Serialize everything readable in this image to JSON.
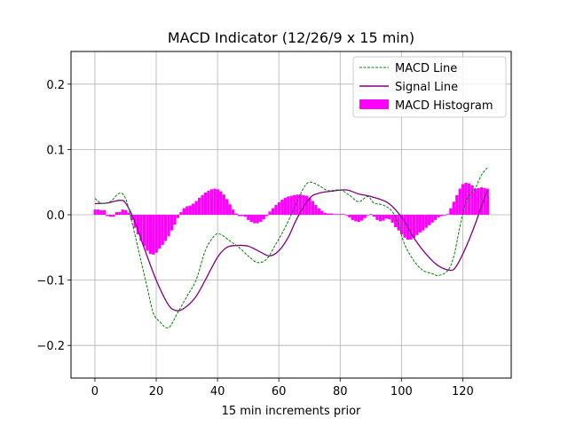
{
  "chart_data": {
    "type": "line",
    "title": "MACD Indicator (12/26/9 x 15 min)",
    "xlabel": "15 min increments prior",
    "ylabel": "",
    "xlim": [
      -7.8,
      135.8
    ],
    "ylim": [
      -0.25,
      0.25
    ],
    "grid": true,
    "legend_position": "top-right",
    "xticks": [
      0,
      20,
      40,
      60,
      80,
      100,
      120
    ],
    "xtick_labels": [
      "0",
      "20",
      "40",
      "60",
      "80",
      "100",
      "120"
    ],
    "yticks": [
      -0.2,
      -0.1,
      0.0,
      0.1,
      0.2
    ],
    "ytick_labels": [
      "−0.2",
      "−0.1",
      "0.0",
      "0.1",
      "0.2"
    ],
    "colors": {
      "macd": "#008000",
      "signal": "#800080",
      "histogram": "#ff00ff",
      "grid": "#b0b0b0"
    },
    "series": [
      {
        "name": "MACD Line",
        "style": "dashed",
        "x": [
          0,
          2,
          5,
          8,
          10,
          12,
          15,
          17,
          19,
          21,
          24,
          27,
          30,
          33,
          36,
          39,
          41,
          44,
          47,
          50,
          53,
          56,
          59,
          62,
          65,
          68,
          70,
          73,
          76,
          80,
          83,
          86,
          89,
          91,
          94,
          97,
          99,
          101,
          104,
          107,
          110,
          112,
          115,
          117,
          119,
          121,
          124,
          126,
          128
        ],
        "y": [
          0.025,
          0.018,
          0.02,
          0.033,
          0.025,
          -0.01,
          -0.07,
          -0.11,
          -0.15,
          -0.163,
          -0.173,
          -0.15,
          -0.125,
          -0.1,
          -0.055,
          -0.032,
          -0.03,
          -0.04,
          -0.05,
          -0.063,
          -0.073,
          -0.068,
          -0.045,
          -0.02,
          0.01,
          0.04,
          0.05,
          0.045,
          0.037,
          0.038,
          0.03,
          0.02,
          0.028,
          0.018,
          0.015,
          0.005,
          -0.015,
          -0.045,
          -0.07,
          -0.085,
          -0.09,
          -0.093,
          -0.086,
          -0.065,
          -0.02,
          0.02,
          0.04,
          0.06,
          0.072
        ]
      },
      {
        "name": "Signal Line",
        "style": "solid",
        "x": [
          0,
          4,
          8,
          10,
          13,
          16,
          20,
          24,
          27,
          30,
          33,
          36,
          40,
          43,
          46,
          50,
          54,
          57,
          60,
          63,
          66,
          70,
          73,
          77,
          82,
          86,
          90,
          95,
          98,
          101,
          104,
          108,
          112,
          116,
          118,
          121,
          124,
          126,
          128
        ],
        "y": [
          0.017,
          0.018,
          0.022,
          0.018,
          -0.01,
          -0.05,
          -0.1,
          -0.138,
          -0.147,
          -0.14,
          -0.125,
          -0.1,
          -0.065,
          -0.05,
          -0.047,
          -0.048,
          -0.057,
          -0.063,
          -0.055,
          -0.035,
          -0.005,
          0.025,
          0.033,
          0.036,
          0.038,
          0.032,
          0.028,
          0.02,
          0.008,
          -0.01,
          -0.035,
          -0.06,
          -0.078,
          -0.085,
          -0.078,
          -0.05,
          -0.015,
          0.012,
          0.037
        ]
      },
      {
        "name": "MACD Histogram",
        "style": "bar",
        "values": [
          0.008,
          0.008,
          0.007,
          0.007,
          -0.002,
          -0.003,
          -0.003,
          0.004,
          0.004,
          0.008,
          0.007,
          0.003,
          -0.008,
          -0.02,
          -0.03,
          -0.04,
          -0.048,
          -0.055,
          -0.06,
          -0.061,
          -0.058,
          -0.052,
          -0.046,
          -0.04,
          -0.033,
          -0.024,
          -0.015,
          -0.005,
          0.004,
          0.01,
          0.013,
          0.014,
          0.017,
          0.021,
          0.026,
          0.03,
          0.034,
          0.037,
          0.039,
          0.04,
          0.039,
          0.036,
          0.031,
          0.024,
          0.016,
          0.008,
          0.002,
          -0.002,
          -0.002,
          -0.003,
          -0.008,
          -0.011,
          -0.013,
          -0.013,
          -0.011,
          -0.007,
          -0.002,
          0.005,
          0.01,
          0.015,
          0.019,
          0.023,
          0.026,
          0.028,
          0.029,
          0.03,
          0.031,
          0.031,
          0.03,
          0.029,
          0.026,
          0.021,
          0.015,
          0.01,
          0.006,
          0.003,
          0.002,
          0.002,
          0.001,
          0.001,
          0.001,
          0.001,
          -0.001,
          -0.004,
          -0.008,
          -0.01,
          -0.011,
          -0.009,
          -0.005,
          -0.001,
          0.001,
          -0.003,
          -0.008,
          -0.01,
          -0.009,
          -0.006,
          -0.007,
          -0.012,
          -0.019,
          -0.024,
          -0.03,
          -0.035,
          -0.038,
          -0.038,
          -0.035,
          -0.031,
          -0.027,
          -0.024,
          -0.02,
          -0.016,
          -0.012,
          -0.008,
          -0.004,
          -0.002,
          -0.001,
          0.001,
          0.01,
          0.02,
          0.03,
          0.04,
          0.047,
          0.049,
          0.048,
          0.045,
          0.04,
          0.041,
          0.042,
          0.041,
          0.04
        ]
      }
    ],
    "legend": [
      "MACD Line",
      "Signal Line",
      "MACD Histogram"
    ]
  }
}
